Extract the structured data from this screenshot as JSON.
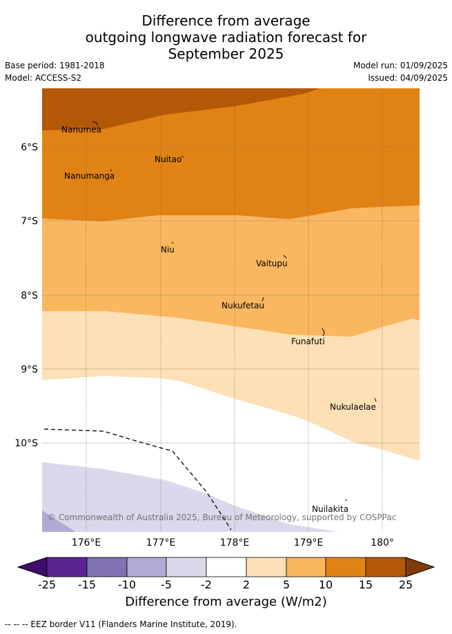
{
  "title": {
    "line1": "Difference from average",
    "line2": "outgoing longwave radiation forecast for",
    "line3": "September 2025"
  },
  "meta": {
    "base_period": "Base period: 1981-2018",
    "model": "Model: ACCESS-S2",
    "model_run": "Model run: 01/09/2025",
    "issued": "Issued: 04/09/2025"
  },
  "map": {
    "lat_labels": [
      "6°S",
      "7°S",
      "8°S",
      "9°S",
      "10°S"
    ],
    "lon_labels": [
      "176°E",
      "177°E",
      "178°E",
      "179°E",
      "180°"
    ],
    "places": [
      "Nanumea",
      "Nuitao",
      "Nanumanga",
      "Niu",
      "Vaitupu",
      "Nukufetau",
      "Funafuti",
      "Nukulaelae",
      "Nuilakita"
    ],
    "copyright": "© Commonwealth of Australia 2025, Bureau of Meteorology, supported by COSPPac"
  },
  "colorbar": {
    "ticks": [
      "-25",
      "-15",
      "-10",
      "-5",
      "-2",
      "2",
      "5",
      "10",
      "15",
      "25"
    ],
    "colors": [
      "#3f0d6b",
      "#5a2590",
      "#8072b0",
      "#b2aad4",
      "#d9d9eb",
      "#ffffff",
      "#fde0b6",
      "#fbb760",
      "#e08214",
      "#b35806",
      "#7f3b08"
    ],
    "title": "Difference from average (W/m2)"
  },
  "footnote": "-- -- -- EEZ border V11 (Flanders Marine Institute, 2019)."
}
